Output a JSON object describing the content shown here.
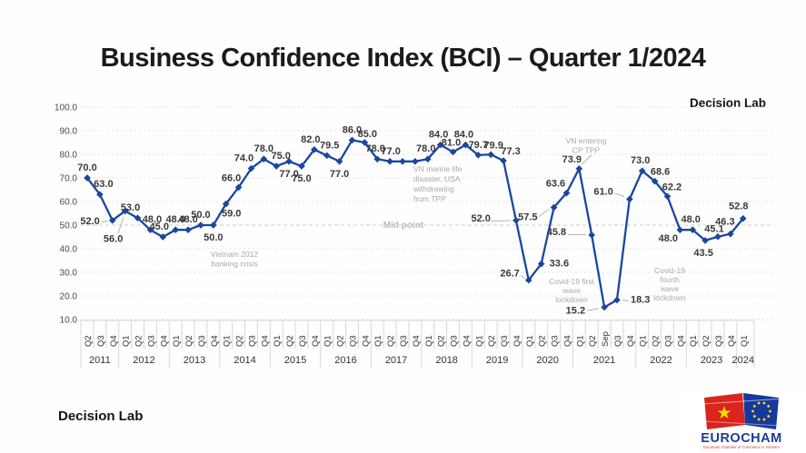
{
  "page": {
    "title": "Business Confidence Index (BCI) – Quarter 1/2024",
    "brand_top": "Decision Lab",
    "brand_bottom": "Decision Lab"
  },
  "logo": {
    "name": "EUROCHAM",
    "tagline": "European Chamber of Commerce in Vietnam"
  },
  "colors": {
    "line": "#1a479e",
    "point_label": "#3a3a3a",
    "annotation": "#a9a9a9",
    "leader": "#b4b4b4",
    "grid": "#e3e3e3",
    "mid_grid": "#cfcfcf",
    "axis_line": "#d7d7d7",
    "axis_text": "#333333",
    "tick_text": "#4a4a4a"
  },
  "chart_data": {
    "type": "line",
    "title": "Business Confidence Index (BCI) – Quarter 1/2024",
    "xlabel": "",
    "ylabel": "",
    "ylim": [
      10,
      100
    ],
    "grid": true,
    "legend": false,
    "y_ticks": [
      "100.0",
      "90.0",
      "80.0",
      "70.0",
      "60.0",
      "50.0",
      "40.0",
      "30.0",
      "20.0",
      "10.0"
    ],
    "mid_point_label": "Mid point",
    "groups": [
      {
        "year": "2011",
        "quarters": [
          "Q2",
          "Q3",
          "Q4"
        ]
      },
      {
        "year": "2012",
        "quarters": [
          "Q1",
          "Q2",
          "Q3",
          "Q4"
        ]
      },
      {
        "year": "2013",
        "quarters": [
          "Q1",
          "Q2",
          "Q3",
          "Q4"
        ]
      },
      {
        "year": "2014",
        "quarters": [
          "Q1",
          "Q2",
          "Q3",
          "Q4"
        ]
      },
      {
        "year": "2015",
        "quarters": [
          "Q1",
          "Q2",
          "Q3",
          "Q4"
        ]
      },
      {
        "year": "2016",
        "quarters": [
          "Q1",
          "Q2",
          "Q3",
          "Q4"
        ]
      },
      {
        "year": "2017",
        "quarters": [
          "Q1",
          "Q2",
          "Q3",
          "Q4"
        ]
      },
      {
        "year": "2018",
        "quarters": [
          "Q1",
          "Q2",
          "Q3",
          "Q4"
        ]
      },
      {
        "year": "2019",
        "quarters": [
          "Q1",
          "Q2",
          "Q3",
          "Q4"
        ]
      },
      {
        "year": "2020",
        "quarters": [
          "Q1",
          "Q2",
          "Q3",
          "Q4"
        ]
      },
      {
        "year": "2021",
        "quarters": [
          "Q1",
          "Q2",
          "Sep",
          "Q3",
          "Q4"
        ]
      },
      {
        "year": "2022",
        "quarters": [
          "Q1",
          "Q2",
          "Q3",
          "Q4"
        ]
      },
      {
        "year": "2023",
        "quarters": [
          "Q1",
          "Q2",
          "Q3",
          "Q4"
        ]
      },
      {
        "year": "2024",
        "quarters": [
          "Q1"
        ]
      }
    ],
    "values": [
      70.0,
      63.0,
      52.0,
      56.0,
      53.0,
      48.0,
      45.0,
      48.0,
      48.0,
      50.0,
      50.0,
      59.0,
      66.0,
      74.0,
      78.0,
      75.0,
      77.0,
      75.0,
      82.0,
      79.5,
      77.0,
      86.0,
      85.0,
      78.0,
      77.0,
      77.0,
      77.0,
      78.0,
      84.0,
      81.0,
      84.0,
      79.7,
      79.9,
      77.3,
      52.0,
      26.7,
      33.6,
      57.5,
      63.6,
      73.9,
      45.8,
      15.2,
      18.3,
      61.0,
      73.0,
      68.6,
      62.2,
      48.0,
      48.0,
      43.5,
      45.1,
      46.3,
      52.8
    ],
    "point_labels": [
      "70.0",
      "63.0",
      "52.0",
      "56.0",
      "53.0",
      "48.0",
      "45.0",
      "48.0",
      "48.0",
      "50.0",
      "50.0",
      "59.0",
      "66.0",
      "74.0",
      "78.0",
      "75.0",
      "77.0",
      "75.0",
      "82.0",
      "79.5",
      "77.0",
      "86.0",
      "85.0",
      "78.0",
      "77.0",
      "",
      "",
      "78.0",
      "84.0",
      "81.0",
      "84.0",
      "79.7",
      "79.9",
      "77.3",
      "52.0",
      "26.7",
      "33.6",
      "57.5",
      "63.6",
      "73.9",
      "45.8",
      "15.2",
      "18.3",
      "61.0",
      "73.0",
      "68.6",
      "62.2",
      "48.0",
      "48.0",
      "43.5",
      "45.1",
      "46.3",
      "52.8"
    ],
    "annotations": [
      {
        "id": "banking-crisis",
        "text": "Vietnam 2012\nbanking crisis"
      },
      {
        "id": "marine-life",
        "text": "VN marine life\ndisaster, USA\nwithdrawing\nfrom TPP"
      },
      {
        "id": "cptpp",
        "text": "VN entering\nCP TPP"
      },
      {
        "id": "covid-first",
        "text": "Covid-19 first\nwave\nlockdown"
      },
      {
        "id": "covid-fourth",
        "text": "Covid-19\nfourth\nwave\nlockdown"
      }
    ]
  }
}
